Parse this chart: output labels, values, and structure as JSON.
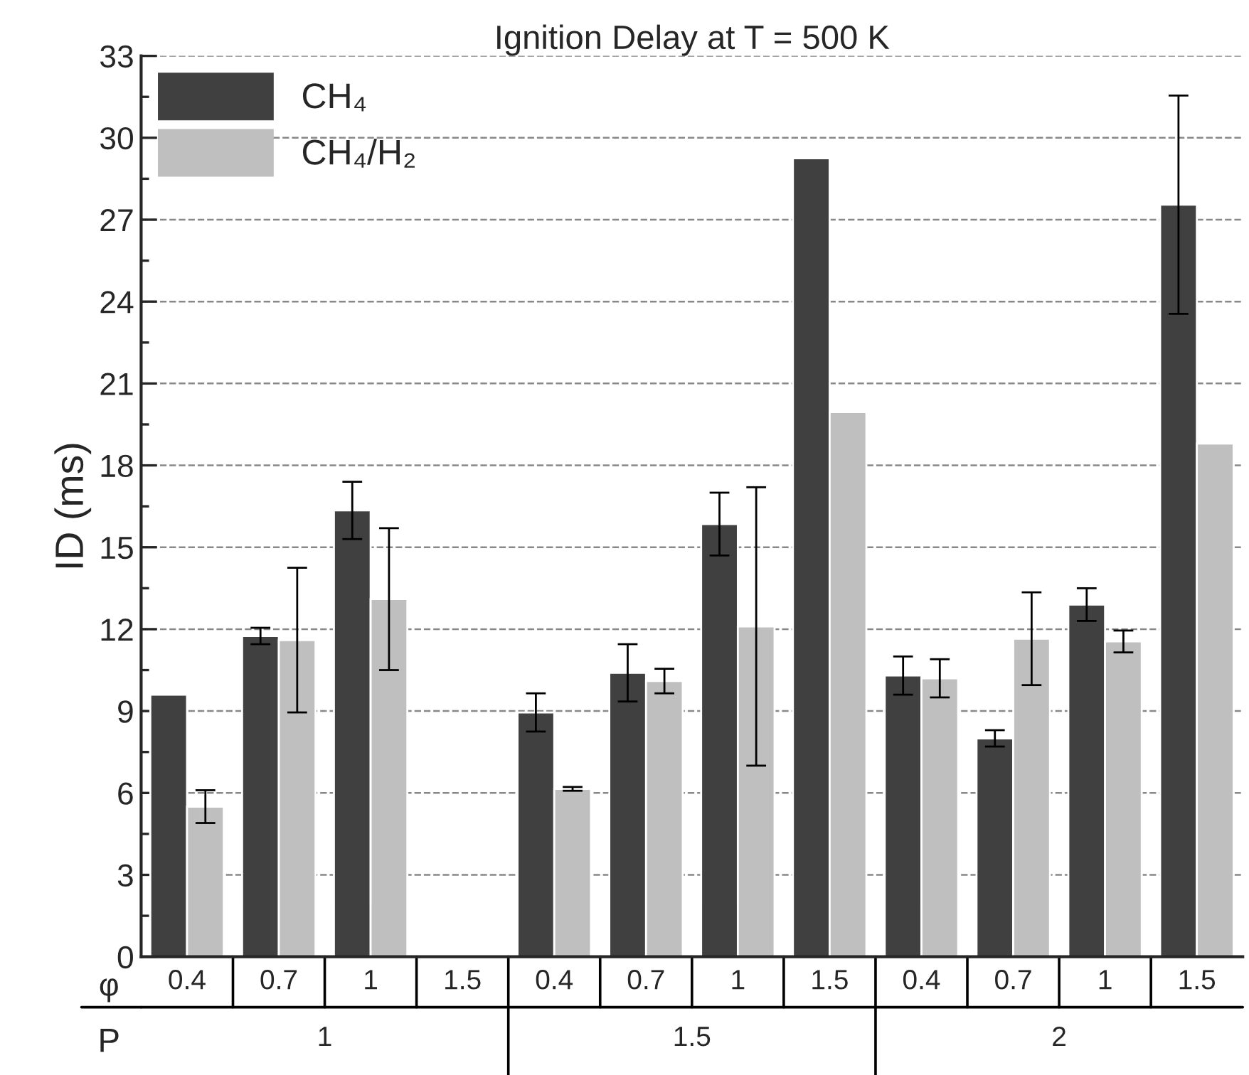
{
  "chart_data": {
    "type": "bar",
    "title": "Ignition Delay at T = 500 K",
    "ylabel": "ID (ms)",
    "categories": [
      "0.4",
      "0.7",
      "1",
      "1.5",
      "0.4",
      "0.7",
      "1",
      "1.5",
      "0.4",
      "0.7",
      "1",
      "1.5"
    ],
    "series": [
      {
        "name": "CH₄",
        "color": "#3f403f",
        "values": [
          9.6,
          11.75,
          16.35,
          null,
          8.95,
          10.4,
          15.85,
          29.25,
          10.3,
          8.0,
          12.9,
          27.55
        ],
        "errors": [
          null,
          0.3,
          1.05,
          null,
          0.7,
          1.05,
          1.15,
          null,
          0.7,
          0.3,
          0.6,
          4.0
        ]
      },
      {
        "name": "CH₄/H₂",
        "color": "#bfbfbf",
        "values": [
          5.5,
          11.6,
          13.1,
          null,
          6.15,
          10.1,
          12.1,
          19.95,
          10.2,
          11.65,
          11.55,
          18.8
        ],
        "errors": [
          0.6,
          2.65,
          2.6,
          null,
          0.07,
          0.45,
          5.1,
          null,
          0.7,
          1.7,
          0.4,
          null
        ]
      }
    ],
    "annotations": [
      "φ",
      "P",
      "1",
      "1.5",
      "2"
    ],
    "ylim": [
      0,
      33
    ],
    "yticks": [
      0,
      3,
      6,
      9,
      12,
      15,
      18,
      21,
      24,
      27,
      30,
      33
    ],
    "grid": "y",
    "legend": "top left"
  }
}
